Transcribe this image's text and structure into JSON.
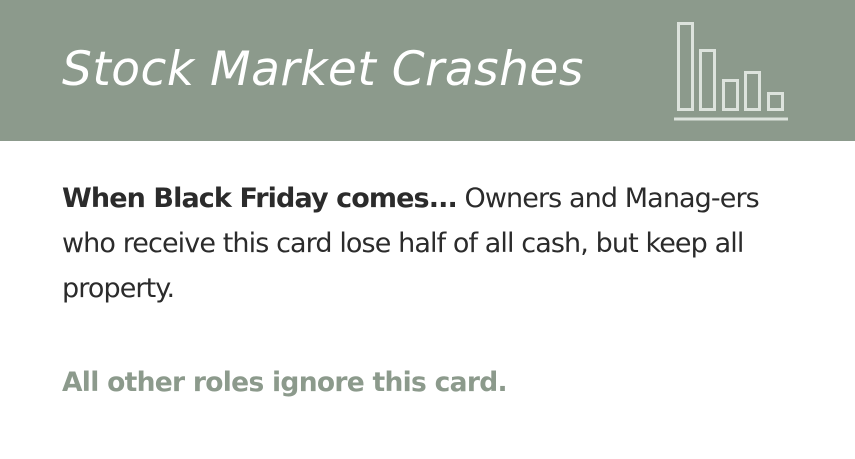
{
  "card": {
    "title": "Stock Market Crashes",
    "icon": "bar-chart-icon",
    "lead": "When Black Friday comes...",
    "body": "Owners and Manag-ers who receive this card lose half of all cash, but keep all property.",
    "footer": "All other roles ignore this card."
  },
  "colors": {
    "header_background": "#8c9a8c",
    "title": "#ffffff",
    "icon_stroke": "#dde3dd",
    "body_text": "#2b2b2b",
    "footer_text": "#8c9a8c"
  }
}
